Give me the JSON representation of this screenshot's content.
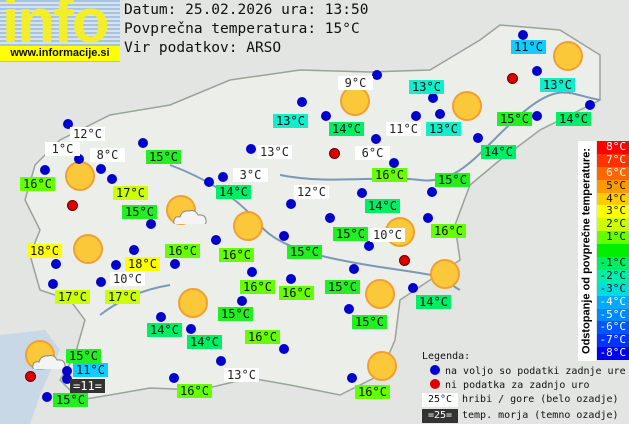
{
  "logo": {
    "word": "info",
    "url": "www.informacije.si"
  },
  "header": {
    "date_line": "Datum: 25.02.2026 ura: 13:50",
    "avg_line": "Povprečna temperatura: 15°C",
    "source_line": "Vir podatkov: ARSO"
  },
  "colors": {
    "station_available": "#0000cc",
    "station_missing": "#dd0000",
    "temp": {
      "18": "#ffff00",
      "17": "#ccff00",
      "16": "#66ff00",
      "15": "#22ee22",
      "14": "#00ee66",
      "13": "#11eecc",
      "11": "#11ccff"
    }
  },
  "stations": [
    {
      "label": "12°C",
      "kind": "mountain"
    },
    {
      "label": "1°C",
      "kind": "mountain"
    },
    {
      "label": "8°C",
      "kind": "mountain"
    },
    {
      "label": "15°C",
      "kind": "normal",
      "value": 15
    },
    {
      "label": "16°C",
      "kind": "normal",
      "value": 16
    },
    {
      "label": "17°C",
      "kind": "normal",
      "value": 17
    },
    {
      "label": "15°C",
      "kind": "normal",
      "value": 15
    },
    {
      "label": "18°C",
      "kind": "normal",
      "value": 18
    },
    {
      "label": "16°C",
      "kind": "normal",
      "value": 16
    },
    {
      "label": "18°C",
      "kind": "normal",
      "value": 18
    },
    {
      "label": "10°C",
      "kind": "mountain"
    },
    {
      "label": "17°C",
      "kind": "normal",
      "value": 17
    },
    {
      "label": "17°C",
      "kind": "normal",
      "value": 17
    },
    {
      "label": "9°C",
      "kind": "mountain"
    },
    {
      "label": "13°C",
      "kind": "normal",
      "value": 13
    },
    {
      "label": "14°C",
      "kind": "normal",
      "value": 14
    },
    {
      "label": "11°C",
      "kind": "mountain"
    },
    {
      "label": "13°C",
      "kind": "normal",
      "value": 13
    },
    {
      "label": "13°C",
      "kind": "normal",
      "value": 13
    },
    {
      "label": "6°C",
      "kind": "mountain"
    },
    {
      "label": "13°C",
      "kind": "mountain"
    },
    {
      "label": "3°C",
      "kind": "mountain"
    },
    {
      "label": "14°C",
      "kind": "normal",
      "value": 14
    },
    {
      "label": "12°C",
      "kind": "mountain"
    },
    {
      "label": "16°C",
      "kind": "normal",
      "value": 16
    },
    {
      "label": "15°C",
      "kind": "normal",
      "value": 15
    },
    {
      "label": "14°C",
      "kind": "normal",
      "value": 14
    },
    {
      "label": "14°C",
      "kind": "normal",
      "value": 14
    },
    {
      "label": "15°C",
      "kind": "normal",
      "value": 15
    },
    {
      "label": "14°C",
      "kind": "normal",
      "value": 14
    },
    {
      "label": "13°C",
      "kind": "normal",
      "value": 13
    },
    {
      "label": "11°C",
      "kind": "normal",
      "value": 11
    },
    {
      "label": "15°C",
      "kind": "normal",
      "value": 15
    },
    {
      "label": "10°C",
      "kind": "mountain"
    },
    {
      "label": "16°C",
      "kind": "normal",
      "value": 16
    },
    {
      "label": "15°C",
      "kind": "normal",
      "value": 15
    },
    {
      "label": "16°C",
      "kind": "normal",
      "value": 16
    },
    {
      "label": "16°C",
      "kind": "normal",
      "value": 16
    },
    {
      "label": "16°C",
      "kind": "normal",
      "value": 16
    },
    {
      "label": "15°C",
      "kind": "normal",
      "value": 15
    },
    {
      "label": "14°C",
      "kind": "normal",
      "value": 14
    },
    {
      "label": "15°C",
      "kind": "normal",
      "value": 15
    },
    {
      "label": "15°C",
      "kind": "normal",
      "value": 15
    },
    {
      "label": "16°C",
      "kind": "normal",
      "value": 16
    },
    {
      "label": "13°C",
      "kind": "mountain"
    },
    {
      "label": "16°C",
      "kind": "normal",
      "value": 16
    },
    {
      "label": "14°C",
      "kind": "normal",
      "value": 14
    },
    {
      "label": "14°C",
      "kind": "normal",
      "value": 14
    },
    {
      "label": "16°C",
      "kind": "normal",
      "value": 16
    },
    {
      "label": "15°C",
      "kind": "normal",
      "value": 15
    },
    {
      "label": "11°C",
      "kind": "normal",
      "value": 11
    },
    {
      "label": "=11=",
      "kind": "sea"
    },
    {
      "label": "15°C",
      "kind": "normal",
      "value": 15
    }
  ],
  "weather_icons": [
    "sunny",
    "partly-cloudy",
    "sunny",
    "sunny",
    "sunny",
    "sunny",
    "sunny",
    "sunny",
    "sunny",
    "sunny",
    "sunny",
    "sunny",
    "partly-cloudy"
  ],
  "scale": {
    "title": "Odstopanje od povprečne temperature:",
    "rows": [
      {
        "label": "8°C",
        "color": "#ff0000"
      },
      {
        "label": "7°C",
        "color": "#ff3300"
      },
      {
        "label": "6°C",
        "color": "#ff6600"
      },
      {
        "label": "5°C",
        "color": "#ff9900"
      },
      {
        "label": "4°C",
        "color": "#ffcc00"
      },
      {
        "label": "3°C",
        "color": "#ffff00"
      },
      {
        "label": "2°C",
        "color": "#ccff00"
      },
      {
        "label": "1°C",
        "color": "#66ff00"
      },
      {
        "label": "",
        "color": "#00ee00"
      },
      {
        "label": "-1°C",
        "color": "#00ee66"
      },
      {
        "label": "-2°C",
        "color": "#00eeaa"
      },
      {
        "label": "-3°C",
        "color": "#00dddd"
      },
      {
        "label": "-4°C",
        "color": "#00aaff"
      },
      {
        "label": "-5°C",
        "color": "#0088ff"
      },
      {
        "label": "-6°C",
        "color": "#0055ff"
      },
      {
        "label": "-7°C",
        "color": "#0033ff"
      },
      {
        "label": "-8°C",
        "color": "#0000ee"
      }
    ]
  },
  "legend": {
    "title": "Legenda:",
    "available": "na voljo so podatki zadnje ure",
    "missing": "ni podatka za zadnjo uro",
    "mountain_sample": "25°C",
    "mountain_text": "hribi / gore (belo ozadje)",
    "sea_sample": "=25=",
    "sea_text": "temp. morja (temno ozadje)"
  }
}
